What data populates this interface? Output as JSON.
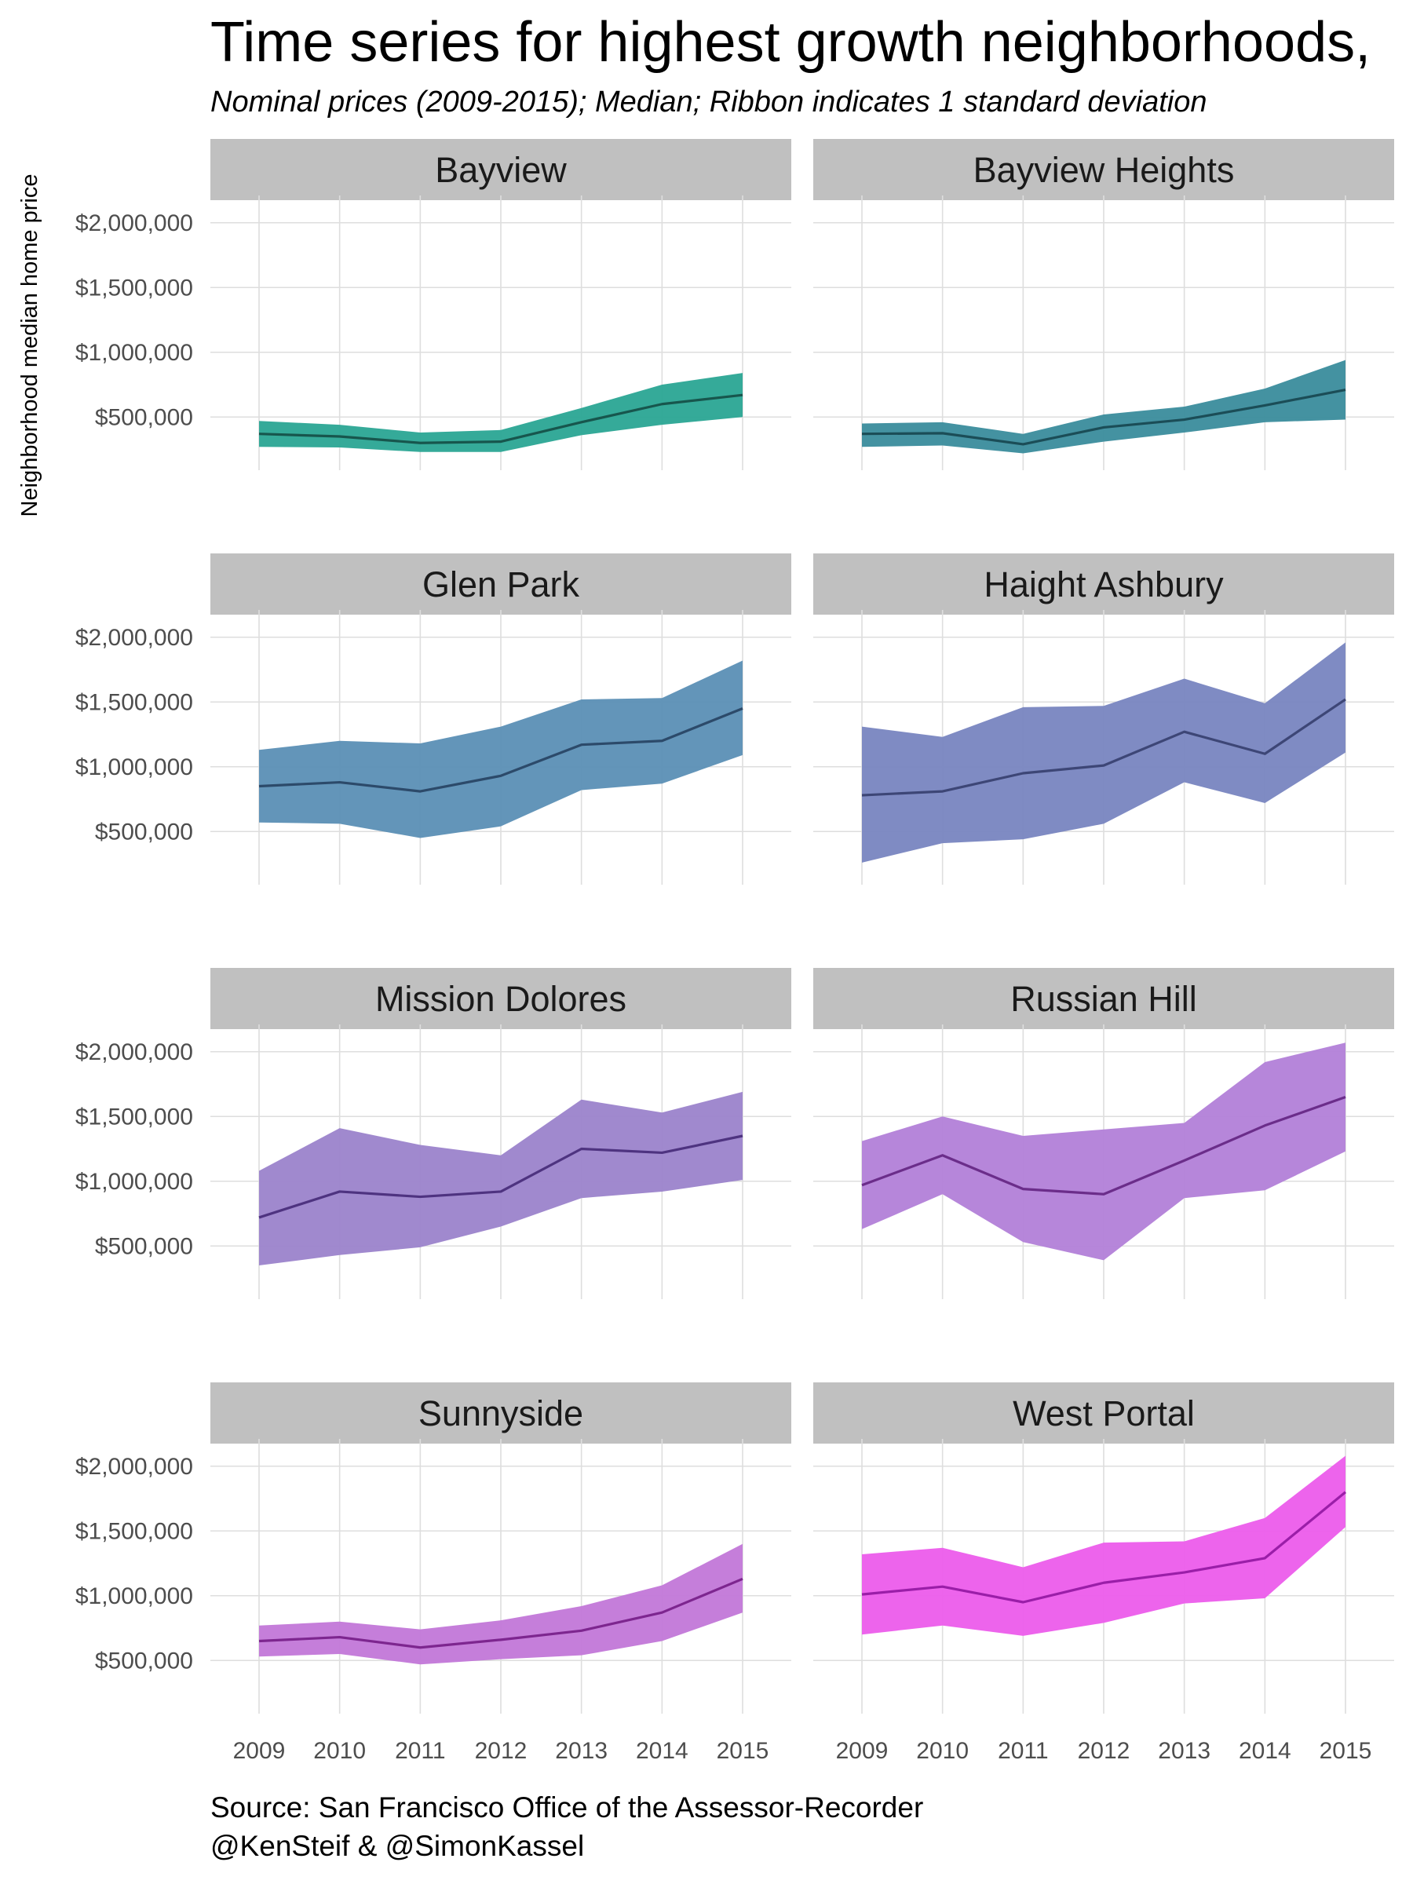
{
  "chart_data": {
    "type": "area",
    "title": "Time series for highest growth neighborhoods,",
    "subtitle": "Nominal prices (2009-2015); Median; Ribbon indicates 1 standard deviation",
    "ylabel": "Neighborhood median home price",
    "xlabel": "",
    "x": [
      2009,
      2010,
      2011,
      2012,
      2013,
      2014,
      2015
    ],
    "x_tick_labels": [
      "2009",
      "2010",
      "2011",
      "2012",
      "2013",
      "2014",
      "2015"
    ],
    "y_ticks": [
      500000,
      1000000,
      1500000,
      2000000
    ],
    "y_tick_labels": [
      "$500,000",
      "$1,000,000",
      "$1,500,000",
      "$2,000,000"
    ],
    "ylim": [
      150000,
      2150000
    ],
    "grid": true,
    "caption": [
      "Source: San Francisco Office of the Assessor-Recorder",
      "@KenSteif & @SimonKassel"
    ],
    "panels": [
      {
        "name": "Bayview",
        "color": "#1f9e89",
        "median": [
          370000,
          350000,
          300000,
          310000,
          460000,
          600000,
          670000
        ],
        "lower": [
          270000,
          265000,
          230000,
          230000,
          360000,
          440000,
          500000
        ],
        "upper": [
          470000,
          440000,
          380000,
          400000,
          570000,
          750000,
          840000
        ]
      },
      {
        "name": "Bayview Heights",
        "color": "#26828e",
        "median": [
          370000,
          375000,
          290000,
          420000,
          480000,
          590000,
          710000
        ],
        "lower": [
          270000,
          280000,
          220000,
          310000,
          380000,
          460000,
          480000
        ],
        "upper": [
          450000,
          460000,
          370000,
          520000,
          580000,
          720000,
          940000
        ]
      },
      {
        "name": "Glen Park",
        "color": "#31688e",
        "median": [
          850000,
          880000,
          810000,
          930000,
          1170000,
          1200000,
          1450000
        ],
        "lower": [
          570000,
          560000,
          450000,
          540000,
          820000,
          870000,
          1090000
        ],
        "upper": [
          1130000,
          1200000,
          1180000,
          1310000,
          1520000,
          1530000,
          1820000
        ]
      },
      {
        "name": "Haight Ashbury",
        "color": "#3e4a89",
        "median": [
          780000,
          810000,
          950000,
          1010000,
          1270000,
          1100000,
          1520000
        ],
        "lower": [
          260000,
          410000,
          440000,
          560000,
          880000,
          720000,
          1110000
        ],
        "upper": [
          1310000,
          1230000,
          1460000,
          1470000,
          1680000,
          1490000,
          1960000
        ]
      },
      {
        "name": "Mission Dolores",
        "color": "#482878",
        "median": [
          720000,
          920000,
          880000,
          920000,
          1250000,
          1220000,
          1350000
        ],
        "lower": [
          350000,
          430000,
          490000,
          650000,
          870000,
          920000,
          1010000
        ],
        "upper": [
          1080000,
          1410000,
          1280000,
          1200000,
          1630000,
          1530000,
          1690000
        ]
      },
      {
        "name": "Russian Hill",
        "color": "#7b2f8c",
        "median": [
          970000,
          1200000,
          940000,
          900000,
          1160000,
          1430000,
          1650000
        ],
        "lower": [
          630000,
          900000,
          530000,
          390000,
          870000,
          930000,
          1230000
        ],
        "upper": [
          1310000,
          1500000,
          1350000,
          1400000,
          1450000,
          1920000,
          2070000
        ]
      },
      {
        "name": "Sunnyside",
        "color": "#8e1e9a",
        "median": [
          650000,
          680000,
          600000,
          660000,
          730000,
          870000,
          1130000
        ],
        "lower": [
          530000,
          550000,
          470000,
          510000,
          540000,
          650000,
          870000
        ],
        "upper": [
          770000,
          800000,
          740000,
          810000,
          920000,
          1080000,
          1400000
        ]
      },
      {
        "name": "West Portal",
        "color": "#b5179e",
        "median": [
          1010000,
          1070000,
          950000,
          1100000,
          1180000,
          1290000,
          1800000
        ],
        "lower": [
          700000,
          770000,
          690000,
          790000,
          940000,
          980000,
          1530000
        ],
        "upper": [
          1320000,
          1370000,
          1220000,
          1410000,
          1420000,
          1600000,
          2080000
        ]
      }
    ],
    "panel_colors": [
      "#1f9e89",
      "#26828e",
      "#31688e",
      "#3e4a89",
      "#482878",
      "#7b2f8c",
      "#8e1e9a",
      "#b5179e"
    ],
    "ribbon_colors": [
      "#2aa594",
      "#3a8c9c",
      "#5b8fb5",
      "#7885c0",
      "#9b83cb",
      "#b27fd8",
      "#c277d8",
      "#ec5ceb"
    ],
    "line_colors": [
      "#17564d",
      "#1b4d57",
      "#2c4a6a",
      "#3d4676",
      "#4e3380",
      "#6b2d8a",
      "#7d268f",
      "#9a1ea8"
    ]
  }
}
